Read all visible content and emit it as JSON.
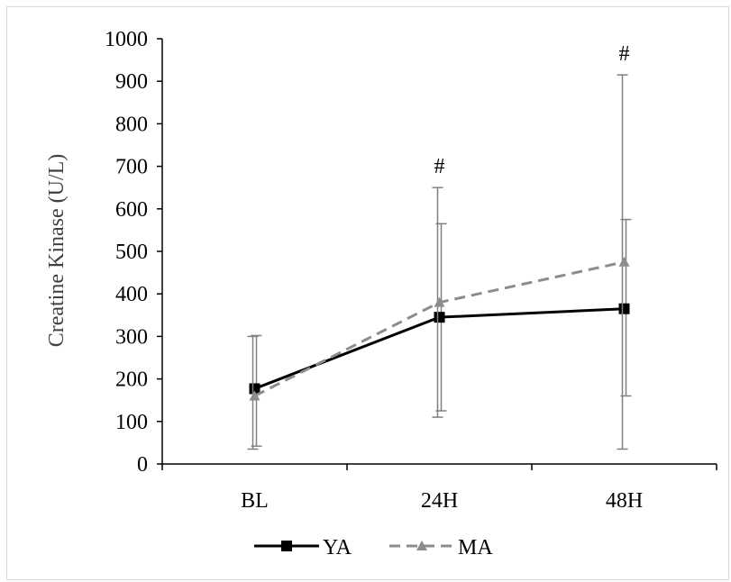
{
  "chart_data": {
    "type": "line",
    "title": "",
    "xlabel": "",
    "ylabel": "Creatine Kinase (U/L)",
    "categories": [
      "BL",
      "24H",
      "48H"
    ],
    "ylim": [
      0,
      1000
    ],
    "yticks": [
      "0",
      "100",
      "200",
      "300",
      "400",
      "500",
      "600",
      "700",
      "800",
      "900",
      "1000"
    ],
    "grid": false,
    "legend_position": "bottom",
    "series": [
      {
        "name": "YA",
        "values": [
          177,
          345,
          365
        ],
        "error": [
          [
            135,
            125
          ],
          [
            220,
            220
          ],
          [
            205,
            210
          ]
        ],
        "color": "#000000",
        "line_style": "solid",
        "marker": "square"
      },
      {
        "name": "MA",
        "values": [
          160,
          380,
          475
        ],
        "error": [
          [
            125,
            140
          ],
          [
            270,
            270
          ],
          [
            440,
            440
          ]
        ],
        "color": "#8c8c8c",
        "line_style": "dashed",
        "marker": "triangle"
      }
    ],
    "annotations": [
      {
        "category": "24H",
        "text": "#"
      },
      {
        "category": "48H",
        "text": "#"
      }
    ]
  }
}
